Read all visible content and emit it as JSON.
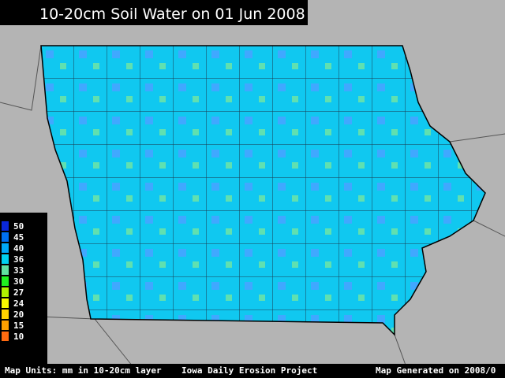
{
  "title": "10-20cm Soil Water on 01 Jun 2008",
  "legend": {
    "items": [
      {
        "label": "50",
        "color": "#0a28d8"
      },
      {
        "label": "45",
        "color": "#0070f0"
      },
      {
        "label": "40",
        "color": "#00a8f8"
      },
      {
        "label": "36",
        "color": "#00d0f0"
      },
      {
        "label": "33",
        "color": "#60e0a0"
      },
      {
        "label": "30",
        "color": "#20f020"
      },
      {
        "label": "27",
        "color": "#b0f000"
      },
      {
        "label": "24",
        "color": "#f8f800"
      },
      {
        "label": "20",
        "color": "#ffd000"
      },
      {
        "label": "15",
        "color": "#ffa000"
      },
      {
        "label": "10",
        "color": "#ff6a10"
      }
    ]
  },
  "footer": {
    "units": "Map Units: mm in 10-20cm layer",
    "project": "Iowa Daily Erosion Project",
    "generated": "Map Generated on  2008/0"
  }
}
